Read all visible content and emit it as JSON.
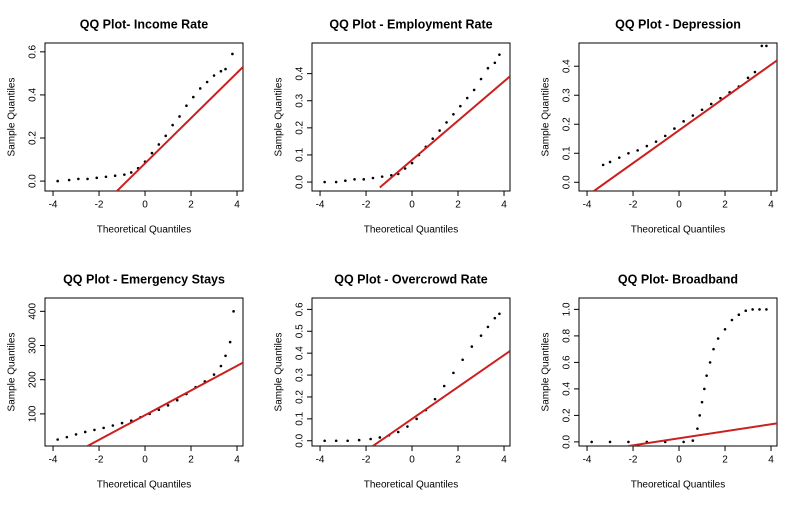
{
  "chart_data": [
    {
      "type": "qq",
      "title": "QQ Plot- Income Rate",
      "x_label": "Theoretical Quantiles",
      "y_label": "Sample Quantiles",
      "x": [
        -3.8,
        -3.3,
        -2.9,
        -2.5,
        -2.1,
        -1.7,
        -1.3,
        -0.9,
        -0.6,
        -0.3,
        0,
        0.3,
        0.6,
        0.9,
        1.2,
        1.5,
        1.8,
        2.1,
        2.4,
        2.7,
        3.0,
        3.3,
        3.5,
        3.8
      ],
      "y": [
        0.0,
        0.005,
        0.01,
        0.01,
        0.015,
        0.02,
        0.025,
        0.03,
        0.04,
        0.06,
        0.09,
        0.13,
        0.17,
        0.21,
        0.26,
        0.3,
        0.35,
        0.39,
        0.43,
        0.46,
        0.49,
        0.51,
        0.52,
        0.59
      ],
      "line": {
        "x": [
          -1.22,
          4.26
        ],
        "y": [
          -0.046,
          0.53
        ]
      },
      "xlim": [
        -4.35,
        4.26
      ],
      "ylim": [
        -0.046,
        0.641
      ],
      "xticks": [
        -4,
        -2,
        0,
        2,
        4
      ],
      "yticks": [
        {
          "value": 0,
          "label": "0.0"
        },
        0.2,
        0.4,
        0.6
      ],
      "point_color": "#000000",
      "line_color": "#cc1f1f"
    },
    {
      "type": "qq",
      "title": "QQ Plot - Employment Rate",
      "x_label": "Theoretical Quantiles",
      "y_label": "Sample Quantiles",
      "x": [
        -3.8,
        -3.3,
        -2.9,
        -2.5,
        -2.1,
        -1.7,
        -1.3,
        -0.9,
        -0.6,
        -0.3,
        0,
        0.3,
        0.6,
        0.9,
        1.2,
        1.5,
        1.8,
        2.1,
        2.4,
        2.7,
        3.0,
        3.3,
        3.6,
        3.8
      ],
      "y": [
        0.0,
        0.0,
        0.005,
        0.01,
        0.01,
        0.015,
        0.02,
        0.025,
        0.03,
        0.05,
        0.07,
        0.1,
        0.13,
        0.16,
        0.19,
        0.22,
        0.25,
        0.28,
        0.31,
        0.34,
        0.38,
        0.42,
        0.44,
        0.47
      ],
      "line": {
        "x": [
          -1.4,
          4.26
        ],
        "y": [
          -0.02,
          0.39
        ]
      },
      "xlim": [
        -4.35,
        4.26
      ],
      "ylim": [
        -0.033,
        0.513
      ],
      "xticks": [
        -4,
        -2,
        0,
        2,
        4
      ],
      "yticks": [
        {
          "value": 0,
          "label": "0.0"
        },
        0.1,
        0.2,
        0.3,
        0.4
      ],
      "point_color": "#000000",
      "line_color": "#cc1f1f"
    },
    {
      "type": "qq",
      "title": "QQ Plot - Depression",
      "x_label": "Theoretical Quantiles",
      "y_label": "Sample Quantiles",
      "x": [
        -3.3,
        -3.0,
        -2.6,
        -2.2,
        -1.8,
        -1.4,
        -1.0,
        -0.6,
        -0.2,
        0.2,
        0.6,
        1.0,
        1.4,
        1.8,
        2.2,
        2.6,
        3.0,
        3.3,
        3.6,
        3.8
      ],
      "y": [
        0.06,
        0.07,
        0.085,
        0.1,
        0.11,
        0.125,
        0.14,
        0.16,
        0.185,
        0.21,
        0.23,
        0.25,
        0.27,
        0.29,
        0.31,
        0.33,
        0.36,
        0.38,
        0.47,
        0.47
      ],
      "line": {
        "x": [
          -3.7,
          4.26
        ],
        "y": [
          -0.03,
          0.42
        ]
      },
      "xlim": [
        -4.35,
        4.26
      ],
      "ylim": [
        -0.03,
        0.48
      ],
      "xticks": [
        -4,
        -2,
        0,
        2,
        4
      ],
      "yticks": [
        {
          "value": 0,
          "label": "0.0"
        },
        0.1,
        0.2,
        0.3,
        0.4
      ],
      "point_color": "#000000",
      "line_color": "#cc1f1f"
    },
    {
      "type": "qq",
      "title": "QQ Plot - Emergency Stays",
      "x_label": "Theoretical Quantiles",
      "y_label": "Sample Quantiles",
      "x": [
        -3.8,
        -3.4,
        -3.0,
        -2.6,
        -2.2,
        -1.8,
        -1.4,
        -1.0,
        -0.6,
        -0.2,
        0.2,
        0.6,
        1.0,
        1.4,
        1.8,
        2.2,
        2.6,
        3.0,
        3.3,
        3.5,
        3.7,
        3.85
      ],
      "y": [
        25,
        32,
        40,
        47,
        53,
        59,
        66,
        73,
        80,
        90,
        100,
        112,
        125,
        140,
        158,
        178,
        195,
        215,
        240,
        270,
        310,
        400
      ],
      "line": {
        "x": [
          -2.5,
          4.26
        ],
        "y": [
          6,
          250
        ]
      },
      "xlim": [
        -4.35,
        4.26
      ],
      "ylim": [
        6,
        439
      ],
      "xticks": [
        -4,
        -2,
        0,
        2,
        4
      ],
      "yticks": [
        100,
        200,
        300,
        400
      ],
      "point_color": "#000000",
      "line_color": "#cc1f1f"
    },
    {
      "type": "qq",
      "title": "QQ Plot - Overcrowd Rate",
      "x_label": "Theoretical Quantiles",
      "y_label": "Sample Quantiles",
      "x": [
        -3.8,
        -3.3,
        -2.8,
        -2.3,
        -1.8,
        -1.4,
        -1.0,
        -0.6,
        -0.2,
        0.2,
        0.6,
        1.0,
        1.4,
        1.8,
        2.2,
        2.6,
        3.0,
        3.3,
        3.6,
        3.8
      ],
      "y": [
        0.0,
        0.0,
        0.0,
        0.003,
        0.008,
        0.015,
        0.025,
        0.04,
        0.065,
        0.1,
        0.14,
        0.19,
        0.25,
        0.31,
        0.37,
        0.43,
        0.48,
        0.52,
        0.56,
        0.58
      ],
      "line": {
        "x": [
          -1.7,
          4.26
        ],
        "y": [
          -0.024,
          0.41
        ]
      },
      "xlim": [
        -4.35,
        4.26
      ],
      "ylim": [
        -0.024,
        0.652
      ],
      "xticks": [
        -4,
        -2,
        0,
        2,
        4
      ],
      "yticks": [
        {
          "value": 0,
          "label": "0.0"
        },
        0.1,
        0.2,
        0.3,
        0.4,
        0.5,
        0.6
      ],
      "point_color": "#000000",
      "line_color": "#cc1f1f"
    },
    {
      "type": "qq",
      "title": "QQ Plot- Broadband",
      "x_label": "Theoretical Quantiles",
      "y_label": "Sample Quantiles",
      "x": [
        -3.8,
        -3.0,
        -2.2,
        -1.4,
        -0.6,
        0.2,
        0.6,
        0.8,
        0.9,
        1.0,
        1.1,
        1.2,
        1.35,
        1.5,
        1.7,
        2.0,
        2.3,
        2.6,
        2.9,
        3.2,
        3.5,
        3.8
      ],
      "y": [
        0.0,
        0.0,
        0.0,
        0.0,
        0.0,
        0.0,
        0.01,
        0.1,
        0.2,
        0.3,
        0.4,
        0.5,
        0.6,
        0.7,
        0.78,
        0.85,
        0.92,
        0.96,
        0.99,
        1.0,
        1.0,
        1.0
      ],
      "line": {
        "x": [
          -2.2,
          4.26
        ],
        "y": [
          -0.031,
          0.14
        ]
      },
      "xlim": [
        -4.35,
        4.26
      ],
      "ylim": [
        -0.031,
        1.086
      ],
      "xticks": [
        -4,
        -2,
        0,
        2,
        4
      ],
      "yticks": [
        {
          "value": 0,
          "label": "0.0"
        },
        0.2,
        0.4,
        0.6,
        0.8,
        {
          "value": 1,
          "label": "1.0"
        }
      ],
      "point_color": "#000000",
      "line_color": "#cc1f1f"
    }
  ]
}
